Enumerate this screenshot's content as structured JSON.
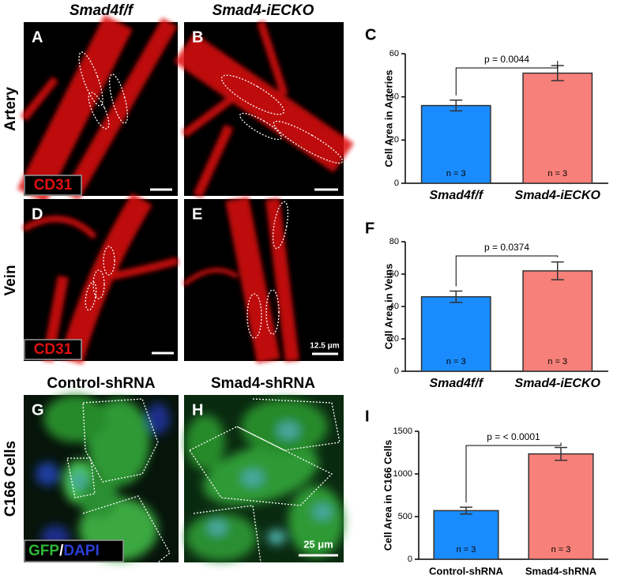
{
  "column_titles": [
    "Smad4f/f",
    "Smad4-iECKO",
    "Control-shRNA",
    "Smad4-shRNA"
  ],
  "row_titles": [
    "Artery",
    "Vein",
    "C166 Cells"
  ],
  "images": [
    {
      "label": "A",
      "stain": "CD31"
    },
    {
      "label": "B"
    },
    {
      "label": "D",
      "stain": "CD31"
    },
    {
      "label": "E",
      "scale": "12.5 μm"
    },
    {
      "label": "G",
      "stain": [
        "GFP",
        "/",
        "DAPI"
      ]
    },
    {
      "label": "H",
      "scale": "25 μm"
    }
  ],
  "chart_data": [
    {
      "type": "bar",
      "label": "C",
      "y_label": "Cell Area in Arteries",
      "categories": [
        "Smad4f/f",
        "Smad4-iECKO"
      ],
      "values": [
        36,
        51
      ],
      "errors": [
        2.5,
        3.5
      ],
      "colors": [
        "#1a8cff",
        "#f8807a"
      ],
      "n_labels": [
        "n = 3",
        "n = 3"
      ],
      "p_label": "p = 0.0044",
      "ylim": [
        0,
        60
      ],
      "yticks": [
        0,
        20,
        40,
        60
      ]
    },
    {
      "type": "bar",
      "label": "F",
      "y_label": "Cell Area in Veins",
      "categories": [
        "Smad4f/f",
        "Smad4-iECKO"
      ],
      "values": [
        46,
        62
      ],
      "errors": [
        3.5,
        5.5
      ],
      "colors": [
        "#1a8cff",
        "#f8807a"
      ],
      "n_labels": [
        "n = 3",
        "n = 3"
      ],
      "p_label": "p = 0.0374",
      "ylim": [
        0,
        80
      ],
      "yticks": [
        0,
        20,
        40,
        60,
        80
      ]
    },
    {
      "type": "bar",
      "label": "I",
      "y_label": "Cell Area in C166 Cells",
      "categories": [
        "Control-shRNA",
        "Smad4-shRNA"
      ],
      "values": [
        570,
        1235
      ],
      "errors": [
        40,
        75
      ],
      "colors": [
        "#1a8cff",
        "#f8807a"
      ],
      "n_labels": [
        "n = 3",
        "n = 3"
      ],
      "p_label": "p = < 0.0001",
      "ylim": [
        0,
        1500
      ],
      "yticks": [
        0,
        500,
        1000,
        1500
      ]
    }
  ]
}
